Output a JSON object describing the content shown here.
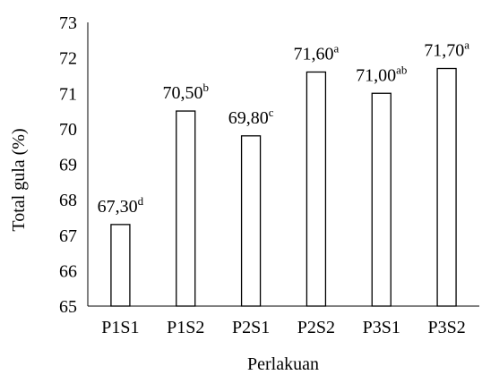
{
  "chart_data": {
    "type": "bar",
    "title": "",
    "xlabel": "Perlakuan",
    "ylabel": "Total gula (%)",
    "ylim": [
      65,
      73
    ],
    "yticks": [
      65,
      66,
      67,
      68,
      69,
      70,
      71,
      72,
      73
    ],
    "grid": false,
    "categories": [
      "P1S1",
      "P1S2",
      "P2S1",
      "P2S2",
      "P3S1",
      "P3S2"
    ],
    "values": [
      67.3,
      70.5,
      69.8,
      71.6,
      71.0,
      71.7
    ],
    "data_labels": [
      {
        "value": "67,30",
        "sup": "d"
      },
      {
        "value": "70,50",
        "sup": "b"
      },
      {
        "value": "69,80",
        "sup": "c"
      },
      {
        "value": "71,60",
        "sup": "a"
      },
      {
        "value": "71,00",
        "sup": "ab"
      },
      {
        "value": "71,70",
        "sup": "a"
      }
    ],
    "colors": {
      "bar_fill": "#ffffff",
      "bar_stroke": "#000000",
      "axis": "#000000"
    }
  }
}
